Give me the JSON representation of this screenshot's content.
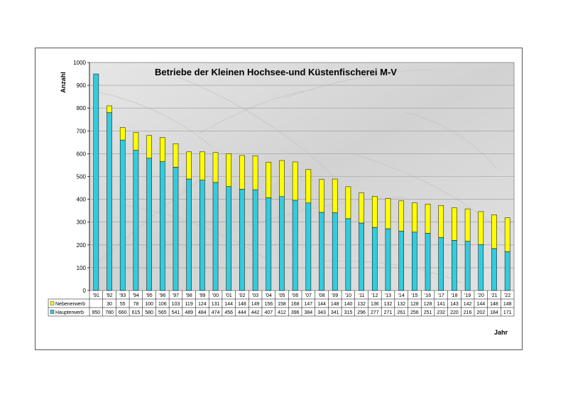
{
  "chart_data": {
    "type": "bar",
    "stacked": true,
    "title": "Betriebe der Kleinen Hochsee-und Küstenfischerei M-V",
    "ylabel": "Anzahl",
    "xlabel": "Jahr",
    "ylim": [
      0,
      1000
    ],
    "yticks": [
      0,
      100,
      200,
      300,
      400,
      500,
      600,
      700,
      800,
      900,
      1000
    ],
    "grid": true,
    "legend": "data-table",
    "categories": [
      "'91",
      "'92",
      "'93",
      "'94",
      "'95",
      "'96",
      "'97",
      "'98",
      "'99",
      "'00",
      "'01",
      "'02",
      "'03",
      "'04",
      "'05",
      "'06",
      "'07",
      "'08",
      "'09",
      "'10",
      "'11",
      "'12",
      "'13",
      "'14",
      "'15",
      "'16",
      "'17",
      "'18",
      "'19",
      "'20",
      "'21",
      "'22"
    ],
    "series": [
      {
        "name": "Haupterwerb",
        "color": "#33ccdd",
        "values": [
          950,
          780,
          660,
          615,
          580,
          565,
          541,
          489,
          484,
          474,
          456,
          444,
          442,
          407,
          412,
          396,
          384,
          343,
          341,
          315,
          296,
          277,
          271,
          261,
          256,
          251,
          232,
          220,
          216,
          202,
          184,
          171
        ]
      },
      {
        "name": "Nebenerwerb",
        "color": "#ffff00",
        "values": [
          null,
          30,
          55,
          78,
          100,
          106,
          103,
          119,
          124,
          131,
          144,
          148,
          149,
          156,
          158,
          168,
          147,
          144,
          148,
          140,
          132,
          136,
          132,
          132,
          128,
          128,
          141,
          143,
          142,
          144,
          148,
          148
        ]
      }
    ]
  }
}
